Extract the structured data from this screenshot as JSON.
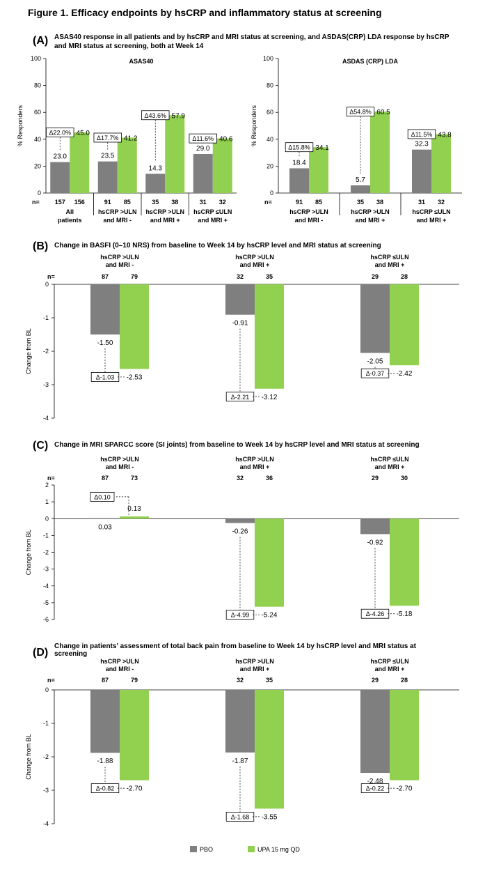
{
  "figure_title": "Figure 1. Efficacy endpoints by hsCRP and inflammatory status at screening",
  "colors": {
    "pbo": "#7f7f7f",
    "upa": "#92d050"
  },
  "legend": {
    "pbo": "PBO",
    "upa": "UPA 15 mg QD"
  },
  "chart_data": [
    {
      "panel": "(A)",
      "type": "bar",
      "heading": "ASAS40 response in all patients and by hsCRP and MRI status at screening, and ASDAS(CRP) LDA response by hsCRP and MRI status at screening, both at Week 14",
      "title": "ASAS40",
      "ylabel": "% Responders",
      "ylim": [
        0,
        100
      ],
      "yticks": [
        0,
        20,
        40,
        60,
        80,
        100
      ],
      "n_label": "n=",
      "categories": [
        "All patients",
        "hsCRP >ULN and MRI -",
        "hsCRP >ULN and MRI +",
        "hsCRP ≤ULN and MRI +"
      ],
      "category_lines": [
        [
          "All",
          "patients"
        ],
        [
          "hsCRP >ULN",
          "and MRI -"
        ],
        [
          "hsCRP >ULN",
          "and MRI +"
        ],
        [
          "hsCRP ≤ULN",
          "and MRI +"
        ]
      ],
      "n": [
        [
          "157",
          "156"
        ],
        [
          "91",
          "85"
        ],
        [
          "35",
          "38"
        ],
        [
          "31",
          "32"
        ]
      ],
      "series": [
        {
          "name": "PBO",
          "values": [
            23.0,
            23.5,
            14.3,
            29.0
          ],
          "labels": [
            "23.0",
            "23.5",
            "14.3",
            "29.0"
          ]
        },
        {
          "name": "UPA 15 mg QD",
          "values": [
            45.0,
            41.2,
            57.9,
            40.6
          ],
          "labels": [
            "45.0",
            "41.2",
            "57.9",
            "40.6"
          ]
        }
      ],
      "deltas": [
        "Δ22.0%",
        "Δ17.7%",
        "Δ43.6%",
        "Δ11.6%"
      ]
    },
    {
      "panel": "",
      "type": "bar",
      "title": "ASDAS (CRP) LDA",
      "ylabel": "% Responders",
      "ylim": [
        0,
        100
      ],
      "yticks": [
        0,
        20,
        40,
        60,
        80,
        100
      ],
      "n_label": "n=",
      "categories": [
        "hsCRP >ULN and MRI -",
        "hsCRP >ULN and MRI +",
        "hsCRP ≤ULN and MRI +"
      ],
      "category_lines": [
        [
          "hsCRP >ULN",
          "and MRI -"
        ],
        [
          "hsCRP >ULN",
          "and MRI +"
        ],
        [
          "hsCRP ≤ULN",
          "and MRI +"
        ]
      ],
      "n": [
        [
          "91",
          "85"
        ],
        [
          "35",
          "38"
        ],
        [
          "31",
          "32"
        ]
      ],
      "series": [
        {
          "name": "PBO",
          "values": [
            18.4,
            5.7,
            32.3
          ],
          "labels": [
            "18.4",
            "5.7",
            "32.3"
          ]
        },
        {
          "name": "UPA 15 mg QD",
          "values": [
            34.1,
            60.5,
            43.8
          ],
          "labels": [
            "34.1",
            "60.5",
            "43.8"
          ]
        }
      ],
      "deltas": [
        "Δ15.8%",
        "Δ54.8%",
        "Δ11.5%"
      ]
    },
    {
      "panel": "(B)",
      "type": "bar",
      "title": "Change in BASFI (0–10 NRS) from baseline to Week 14 by hsCRP level and MRI status at screening",
      "ylabel": "Change from BL",
      "ylim": [
        -4,
        0
      ],
      "yticks": [
        0,
        -1,
        -2,
        -3,
        -4
      ],
      "n_label": "n=",
      "categories": [
        "hsCRP >ULN and MRI -",
        "hsCRP >ULN and MRI +",
        "hsCRP ≤ULN and MRI +"
      ],
      "category_lines": [
        [
          "hsCRP >ULN",
          "and MRI -"
        ],
        [
          "hsCRP >ULN",
          "and MRI +"
        ],
        [
          "hsCRP ≤ULN",
          "and MRI +"
        ]
      ],
      "n": [
        [
          "87",
          "79"
        ],
        [
          "32",
          "35"
        ],
        [
          "29",
          "28"
        ]
      ],
      "series": [
        {
          "name": "PBO",
          "values": [
            -1.5,
            -0.91,
            -2.05
          ],
          "labels": [
            "-1.50",
            "-0.91",
            "-2.05"
          ]
        },
        {
          "name": "UPA 15 mg QD",
          "values": [
            -2.53,
            -3.12,
            -2.42
          ],
          "labels": [
            "-2.53",
            "-3.12",
            "-2.42"
          ]
        }
      ],
      "deltas": [
        "Δ-1.03",
        "Δ-2.21",
        "Δ-0.37"
      ]
    },
    {
      "panel": "(C)",
      "type": "bar",
      "title": "Change in MRI SPARCC score (SI joints) from baseline to Week 14 by hsCRP level and MRI status at screening",
      "ylabel": "Change from BL",
      "ylim": [
        -6,
        2
      ],
      "yticks": [
        2,
        1,
        0,
        -1,
        -2,
        -3,
        -4,
        -5,
        -6
      ],
      "n_label": "n=",
      "categories": [
        "hsCRP >ULN and MRI -",
        "hsCRP >ULN and MRI +",
        "hsCRP ≤ULN and MRI +"
      ],
      "category_lines": [
        [
          "hsCRP >ULN",
          "and MRI -"
        ],
        [
          "hsCRP >ULN",
          "and MRI +"
        ],
        [
          "hsCRP ≤ULN",
          "and MRI +"
        ]
      ],
      "n": [
        [
          "87",
          "73"
        ],
        [
          "32",
          "36"
        ],
        [
          "29",
          "30"
        ]
      ],
      "series": [
        {
          "name": "PBO",
          "values": [
            0.03,
            -0.26,
            -0.92
          ],
          "labels": [
            "0.03",
            "-0.26",
            "-0.92"
          ]
        },
        {
          "name": "UPA 15 mg QD",
          "values": [
            0.13,
            -5.24,
            -5.18
          ],
          "labels": [
            "0.13",
            "-5.24",
            "-5.18"
          ]
        }
      ],
      "deltas": [
        "Δ0.10",
        "Δ-4.99",
        "Δ-4.26"
      ]
    },
    {
      "panel": "(D)",
      "type": "bar",
      "title": "Change in patients' assessment of total back pain from baseline to Week 14 by hsCRP level and MRI status at screening",
      "title_lines": [
        "Change in patients' assessment of total back pain from baseline to Week 14 by hsCRP level and MRI status at",
        "screening"
      ],
      "ylabel": "Change from BL",
      "ylim": [
        -4,
        0
      ],
      "yticks": [
        0,
        -1,
        -2,
        -3,
        -4
      ],
      "n_label": "n=",
      "categories": [
        "hsCRP >ULN and MRI -",
        "hsCRP >ULN and MRI +",
        "hsCRP ≤ULN and MRI +"
      ],
      "category_lines": [
        [
          "hsCRP >ULN",
          "and MRI -"
        ],
        [
          "hsCRP >ULN",
          "and MRI +"
        ],
        [
          "hsCRP ≤ULN",
          "and MRI +"
        ]
      ],
      "n": [
        [
          "87",
          "79"
        ],
        [
          "32",
          "35"
        ],
        [
          "29",
          "28"
        ]
      ],
      "series": [
        {
          "name": "PBO",
          "values": [
            -1.88,
            -1.87,
            -2.48
          ],
          "labels": [
            "-1.88",
            "-1.87",
            "-2.48"
          ]
        },
        {
          "name": "UPA 15 mg QD",
          "values": [
            -2.7,
            -3.55,
            -2.7
          ],
          "labels": [
            "-2.70",
            "-3.55",
            "-2.70"
          ]
        }
      ],
      "deltas": [
        "Δ-0.82",
        "Δ-1.68",
        "Δ-0.22"
      ]
    }
  ]
}
